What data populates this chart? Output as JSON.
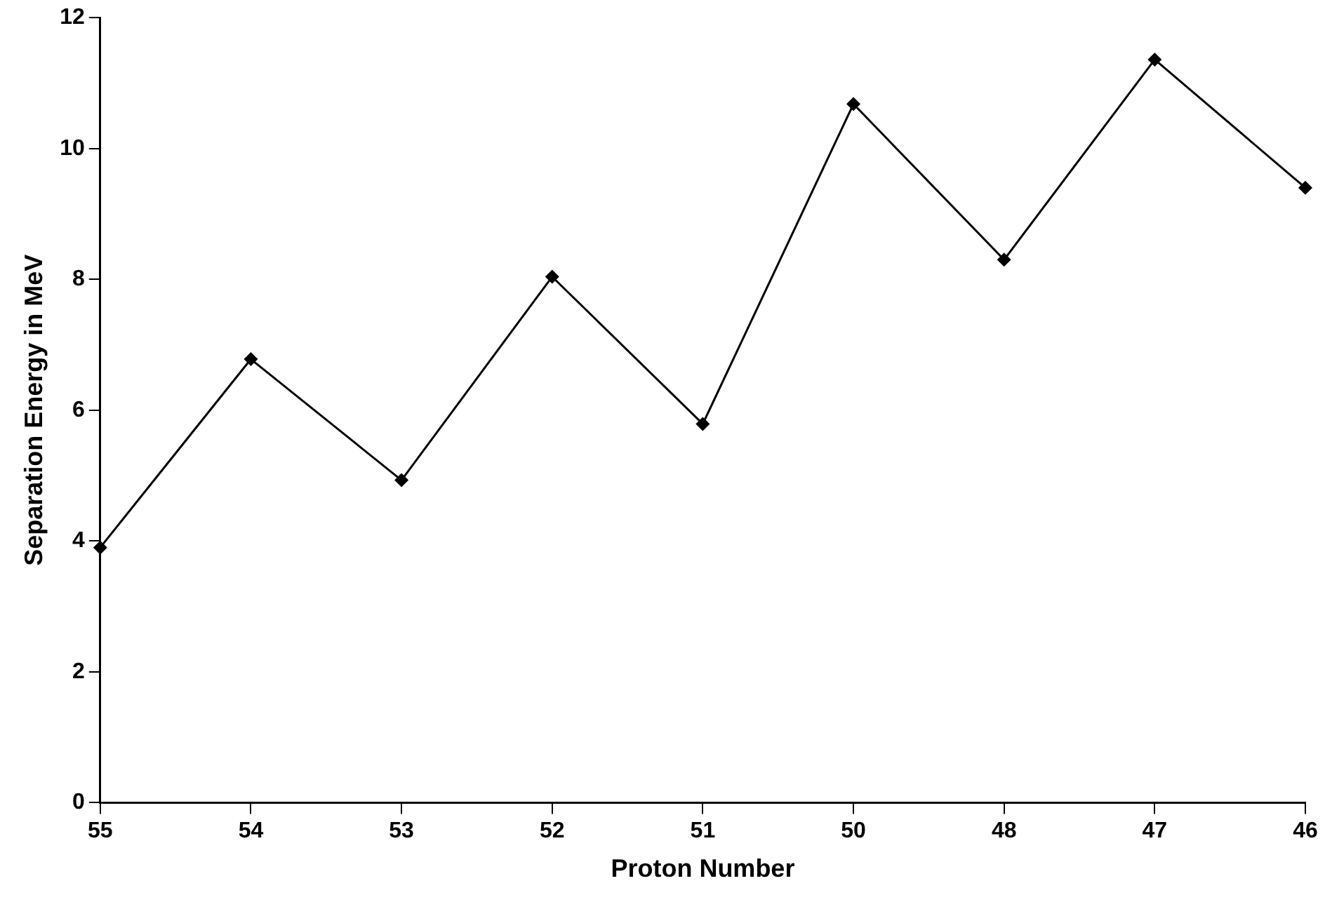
{
  "chart_data": {
    "type": "line",
    "xlabel": "Proton Number",
    "ylabel": "Separation Energy in MeV",
    "categories": [
      "55",
      "54",
      "53",
      "52",
      "51",
      "50",
      "48",
      "47",
      "46"
    ],
    "values": [
      3.9,
      6.78,
      4.93,
      8.04,
      5.79,
      10.68,
      8.3,
      11.36,
      9.4
    ],
    "color": "#000000",
    "marker": "diamond",
    "line_style": "solid",
    "ylim": [
      0,
      12
    ],
    "yticks": [
      0,
      2,
      4,
      6,
      8,
      10,
      12
    ]
  }
}
